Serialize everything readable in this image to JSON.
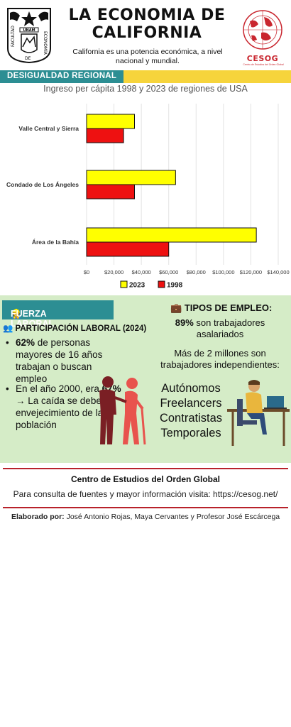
{
  "header": {
    "title_line1": "LA ECONOMIA DE",
    "title_line2": "CALIFORNIA",
    "subtitle": "California es una potencia económica, a nivel nacional y mundial.",
    "logo_left_top": "UNAM",
    "logo_left_side1": "FACULTAD",
    "logo_left_side2": "DE",
    "logo_left_side3": "ECONOMÍA",
    "logo_right_name": "CESOG",
    "logo_right_sub": "Centro de Estudios del Orden Global"
  },
  "section_regional": {
    "banner": "DESIGUALDAD REGIONAL",
    "chart_title": "Ingreso per cápita 1998 y 2023 de regiones de USA"
  },
  "chart_data": {
    "type": "bar",
    "orientation": "horizontal",
    "title": "Ingreso per cápita 1998 y 2023 de regiones de USA",
    "categories": [
      "Valle Central y Sierra",
      "Condado de Los Ángeles",
      "Área de la Bahía"
    ],
    "series": [
      {
        "name": "2023",
        "color": "#ffff00",
        "values": [
          35000,
          65000,
          124000
        ]
      },
      {
        "name": "1998",
        "color": "#ee1111",
        "values": [
          27000,
          35000,
          60000
        ]
      }
    ],
    "x_ticks": [
      "$0",
      "$20,000",
      "$40,000",
      "$60,000",
      "$80,000",
      "$100,000",
      "$120,000",
      "$140,000"
    ],
    "xlim": [
      0,
      140000
    ],
    "grid": true,
    "legend_placement": "bottom"
  },
  "labor": {
    "banner": "FUERZA LABORAL",
    "participation_title": "PARTICIPACIÓN LABORAL (2024)",
    "bullet1_bold": "62%",
    "bullet1_text": " de personas mayores de 16 años trabajan o buscan empleo",
    "bullet2_a": "En el año 2000, era ",
    "bullet2_bold": "67%",
    "bullet2_b": " → La caída se debe al envejecimiento de la población",
    "employment_title": "TIPOS DE EMPLEO:",
    "emp_89_bold": "89%",
    "emp_89_text": " son trabajadores asalariados",
    "emp_2m": "Más de 2 millones son trabajadores independientes:",
    "emp_types": [
      "Autónomos",
      "Freelancers",
      "Contratistas",
      "Temporales"
    ]
  },
  "footer": {
    "center_name": "Centro de Estudios del Orden Global",
    "consult": "Para consulta de fuentes y mayor información visita: https://cesog.net/",
    "credits_label": "Elaborado por:",
    "credits_names": " José Antonio Rojas, Maya Cervantes y Profesor José Escárcega"
  },
  "colors": {
    "teal": "#2c8e93",
    "yellow": "#f6d43c",
    "green_bg": "#d5ecc7",
    "red": "#b8222b"
  }
}
